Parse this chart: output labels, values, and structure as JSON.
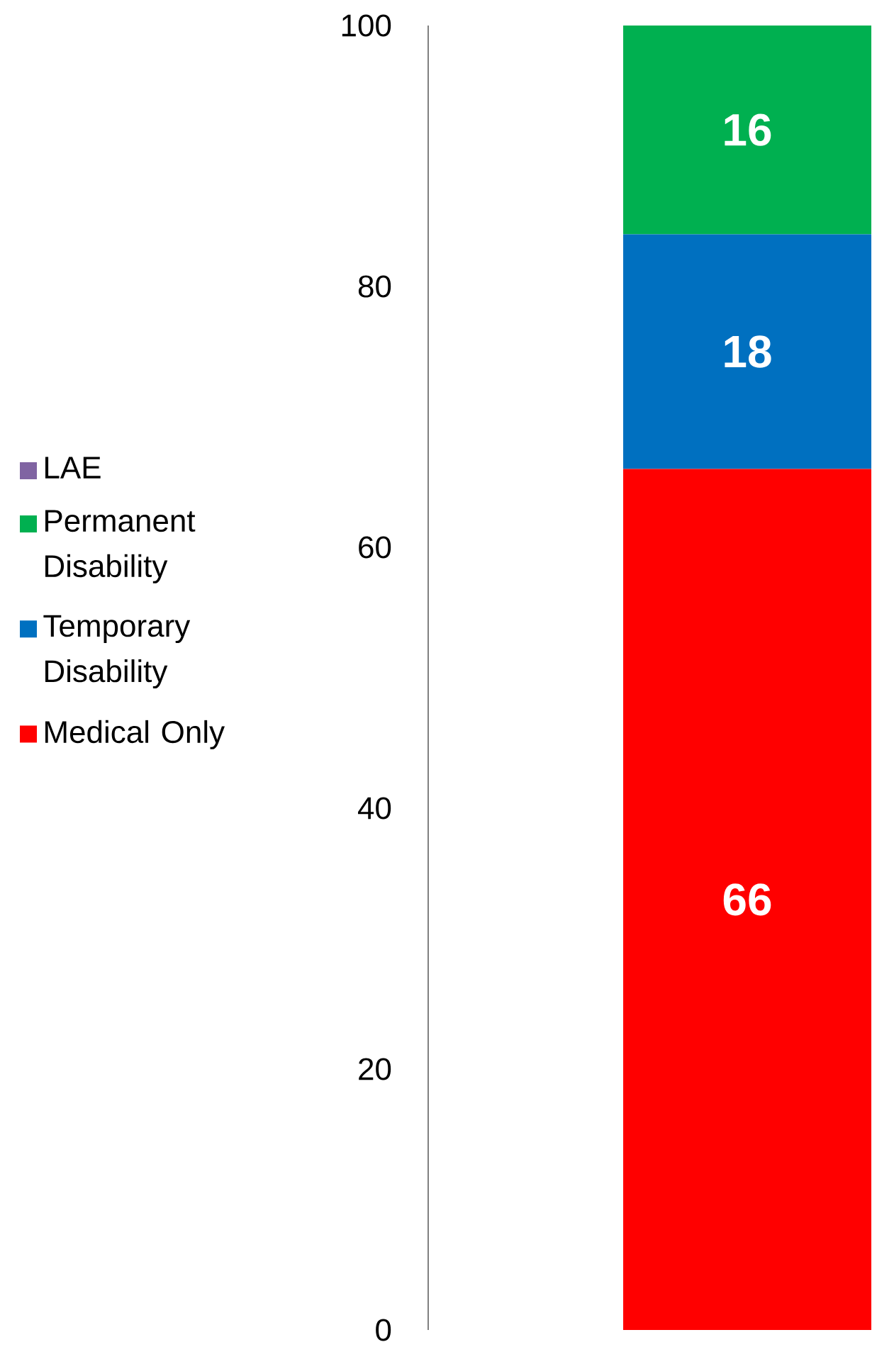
{
  "chart_data": {
    "type": "bar",
    "stacked": true,
    "categories": [
      null
    ],
    "series": [
      {
        "name": "Medical Only",
        "color": "#ff0000",
        "values": [
          66
        ],
        "value_labels": [
          "66"
        ]
      },
      {
        "name": "Temporary Disability",
        "color": "#0070c0",
        "values": [
          18
        ],
        "value_labels": [
          "18"
        ]
      },
      {
        "name": "Permanent Disability",
        "color": "#00b050",
        "values": [
          16
        ],
        "value_labels": [
          "16"
        ]
      },
      {
        "name": "LAE",
        "color": "#8064a2",
        "values": [
          0
        ],
        "value_labels": [
          null
        ]
      }
    ],
    "ylim": [
      0,
      100
    ],
    "yticks": [
      0,
      20,
      40,
      60,
      80,
      100
    ],
    "legend": "left",
    "grid": false
  }
}
